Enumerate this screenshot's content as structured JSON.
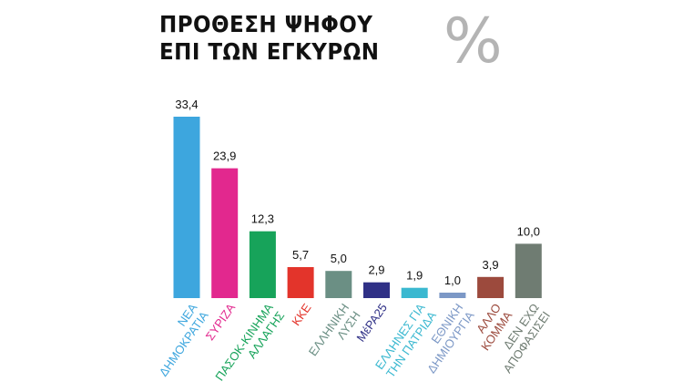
{
  "title_lines": [
    "ΠΡΟΘΕΣΗ ΨΗΦΟΥ",
    "ΕΠΙ ΤΩΝ ΕΓΚΥΡΩΝ"
  ],
  "unit_symbol": "%",
  "chart_data": {
    "type": "bar",
    "title": "ΠΡΟΘΕΣΗ ΨΗΦΟΥ ΕΠΙ ΤΩΝ ΕΓΚΥΡΩΝ",
    "ylabel": "",
    "xlabel": "",
    "ylim": [
      0,
      35
    ],
    "grid": false,
    "legend": "none",
    "value_labels": [
      "33,4",
      "23,9",
      "12,3",
      "5,7",
      "5,0",
      "2,9",
      "1,9",
      "1,0",
      "3,9",
      "10,0"
    ],
    "values": [
      33.4,
      23.9,
      12.3,
      5.7,
      5.0,
      2.9,
      1.9,
      1.0,
      3.9,
      10.0
    ],
    "categories": [
      {
        "lines": [
          "ΝΕΑ",
          "ΔΗΜΟΚΡΑΤΙΑ"
        ],
        "color": "#3da6de"
      },
      {
        "lines": [
          "ΣΥΡΙΖΑ"
        ],
        "color": "#e2288e"
      },
      {
        "lines": [
          "ΠΑΣΟΚ-ΚΙΝΗΜΑ",
          "ΑΛΛΑΓΗΣ"
        ],
        "color": "#17a35a"
      },
      {
        "lines": [
          "ΚΚΕ"
        ],
        "color": "#e3342b"
      },
      {
        "lines": [
          "ΕΛΛΗΝΙΚΗ",
          "ΛΥΣΗ"
        ],
        "color": "#6b8f84"
      },
      {
        "lines": [
          "ΜέΡΑ25"
        ],
        "color": "#2f3086"
      },
      {
        "lines": [
          "ΕΛΛΗΝΕΣ ΓΙΑ",
          "ΤΗΝ ΠΑΤΡΙΔΑ"
        ],
        "color": "#3ab8d0"
      },
      {
        "lines": [
          "ΕΘΝΙΚΗ",
          "ΔΗΜΙΟΥΡΓΙΑ"
        ],
        "color": "#7c98c6"
      },
      {
        "lines": [
          "ΑΛΛΟ",
          "ΚΟΜΜΑ"
        ],
        "color": "#9c4a3d"
      },
      {
        "lines": [
          "ΔΕΝ ΕΧΩ",
          "ΑΠΟΦΑΣΙΣΕΙ"
        ],
        "color": "#6f7c72"
      }
    ]
  }
}
